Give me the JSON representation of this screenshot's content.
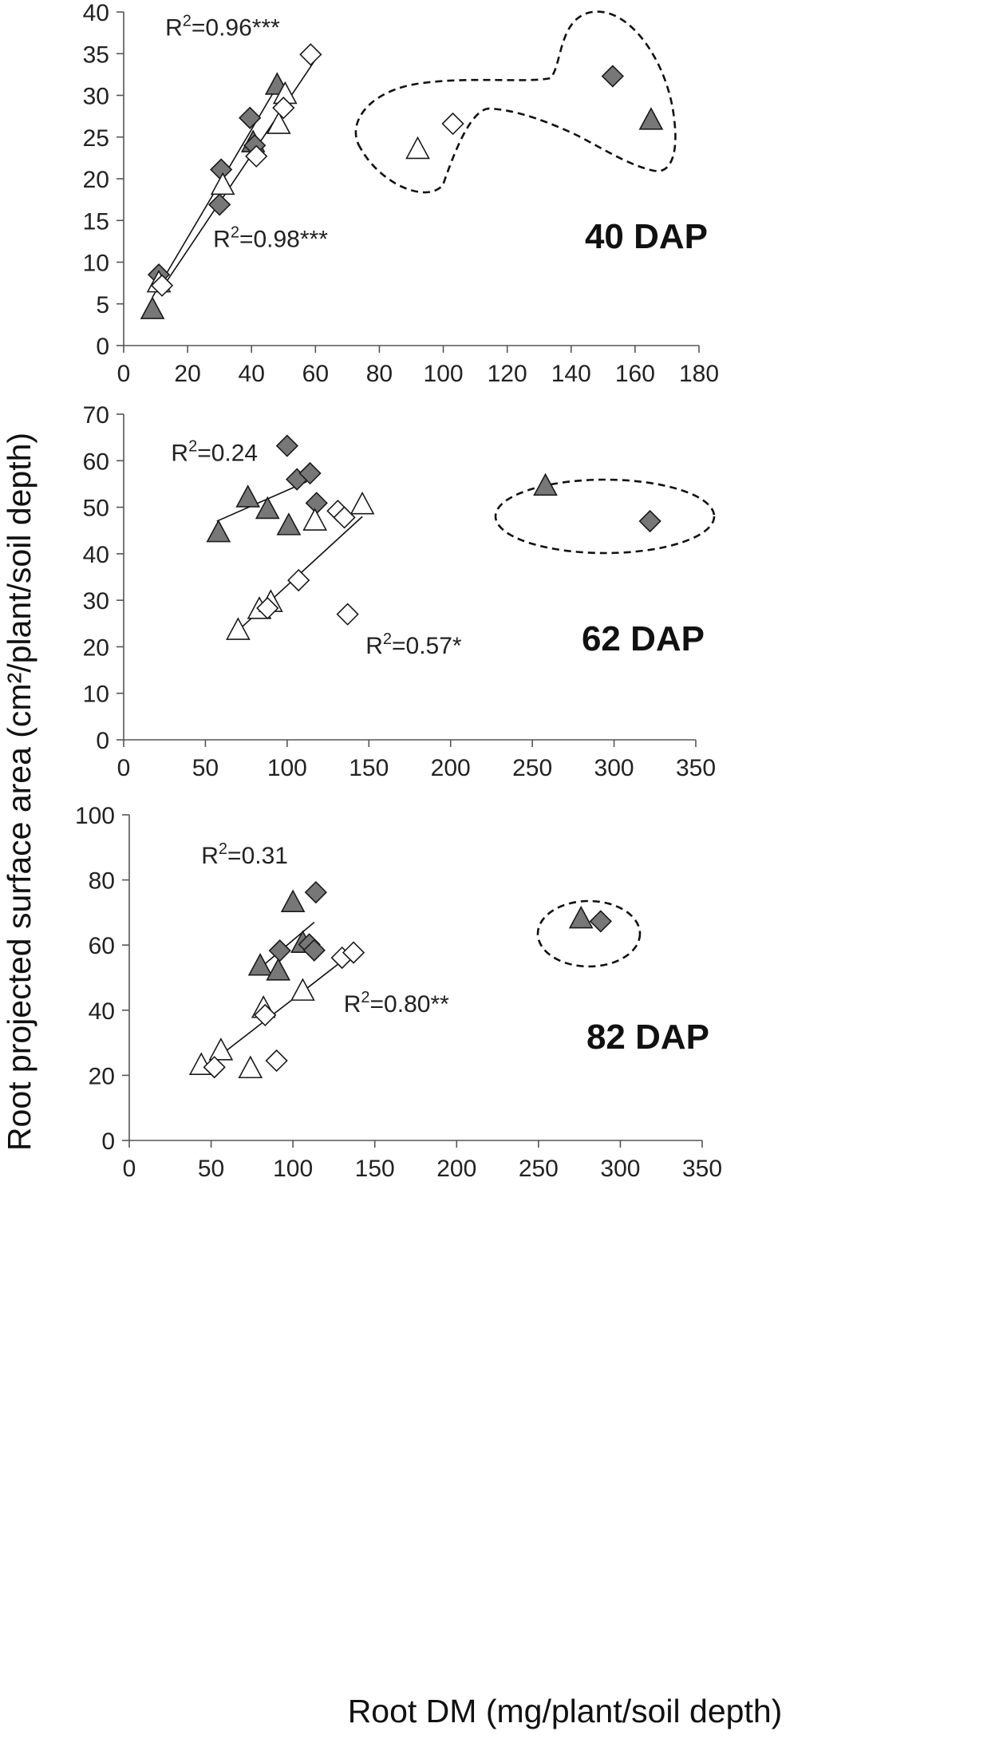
{
  "figure": {
    "ylabel": "Root projected surface area (cm²/plant/soil depth)",
    "xlabel": "Root DM (mg/plant/soil depth)"
  },
  "chart_data": [
    {
      "type": "scatter",
      "panel_label": "40 DAP",
      "xlim": [
        0,
        180
      ],
      "xticks": [
        0,
        20,
        40,
        60,
        80,
        100,
        120,
        140,
        160,
        180
      ],
      "ylim": [
        0,
        40
      ],
      "yticks": [
        0,
        5,
        10,
        15,
        20,
        25,
        30,
        35,
        40
      ],
      "series": [
        {
          "name": "filled-triangle",
          "marker": "triangle",
          "fill": "#777777",
          "points": [
            [
              9,
              4.3
            ],
            [
              48,
              31.2
            ],
            [
              40.5,
              24.3
            ],
            [
              165,
              27
            ]
          ]
        },
        {
          "name": "filled-diamond",
          "marker": "diamond",
          "fill": "#777777",
          "points": [
            [
              11,
              8.5
            ],
            [
              30.5,
              21.1
            ],
            [
              30,
              16.9
            ],
            [
              39.5,
              27.3
            ],
            [
              41,
              24
            ],
            [
              153,
              32.3
            ]
          ]
        },
        {
          "name": "open-triangle",
          "marker": "triangle",
          "fill": "#ffffff",
          "points": [
            [
              11,
              7.5
            ],
            [
              31,
              19.2
            ],
            [
              48.5,
              26.5
            ],
            [
              50.5,
              30.1
            ],
            [
              92,
              23.5
            ]
          ]
        },
        {
          "name": "open-diamond",
          "marker": "diamond",
          "fill": "#ffffff",
          "points": [
            [
              12,
              7.2
            ],
            [
              41.5,
              22.7
            ],
            [
              50,
              28.5
            ],
            [
              58.5,
              34.9
            ],
            [
              103,
              26.6
            ]
          ]
        }
      ],
      "fit_lines": [
        {
          "x": [
            9,
            48
          ],
          "y": [
            5.8,
            31.1
          ]
        },
        {
          "x": [
            11,
            60
          ],
          "y": [
            6.3,
            34.3
          ]
        }
      ],
      "r2_labels": [
        {
          "prefix": "R",
          "sup": "2",
          "text": "=0.96***",
          "x": 13,
          "y": 37.2
        },
        {
          "prefix": "R",
          "sup": "2",
          "text": "=0.98***",
          "x": 28,
          "y": 11.8
        }
      ],
      "outlier_note": "dashed outline around points at high root DM"
    },
    {
      "type": "scatter",
      "panel_label": "62 DAP",
      "xlim": [
        0,
        350
      ],
      "xticks": [
        0,
        50,
        100,
        150,
        200,
        250,
        300,
        350
      ],
      "ylim": [
        0,
        70
      ],
      "yticks": [
        0,
        10,
        20,
        30,
        40,
        50,
        60,
        70
      ],
      "series": [
        {
          "name": "filled-triangle",
          "marker": "triangle",
          "fill": "#777777",
          "points": [
            [
              58,
              44.5
            ],
            [
              76,
              52
            ],
            [
              88,
              49.5
            ],
            [
              101,
              46
            ],
            [
              258,
              54.5
            ]
          ]
        },
        {
          "name": "filled-diamond",
          "marker": "diamond",
          "fill": "#777777",
          "points": [
            [
              100,
              63.2
            ],
            [
              106,
              56
            ],
            [
              114,
              57.3
            ],
            [
              118,
              50.9
            ],
            [
              322,
              47
            ]
          ]
        },
        {
          "name": "open-triangle",
          "marker": "triangle",
          "fill": "#ffffff",
          "points": [
            [
              70,
              23.5
            ],
            [
              83,
              28
            ],
            [
              90,
              29.5
            ],
            [
              117,
              47
            ],
            [
              146,
              50.5
            ]
          ]
        },
        {
          "name": "open-diamond",
          "marker": "diamond",
          "fill": "#ffffff",
          "points": [
            [
              88,
              28.3
            ],
            [
              107,
              34.3
            ],
            [
              131,
              49.2
            ],
            [
              135,
              47.8
            ],
            [
              137,
              27
            ]
          ]
        }
      ],
      "fit_lines": [
        {
          "x": [
            57,
            112
          ],
          "y": [
            47,
            55.5
          ]
        },
        {
          "x": [
            70,
            146
          ],
          "y": [
            23.5,
            48
          ]
        }
      ],
      "r2_labels": [
        {
          "prefix": "R",
          "sup": "2",
          "text": "=0.24",
          "x": 29,
          "y": 60
        },
        {
          "prefix": "R",
          "sup": "2",
          "text": "=0.57*",
          "x": 148,
          "y": 18.5
        }
      ],
      "outlier_note": "dashed ellipse around points at high root DM"
    },
    {
      "type": "scatter",
      "panel_label": "82 DAP",
      "xlim": [
        0,
        350
      ],
      "xticks": [
        0,
        50,
        100,
        150,
        200,
        250,
        300,
        350
      ],
      "ylim": [
        0,
        100
      ],
      "yticks": [
        0,
        20,
        40,
        60,
        80,
        100
      ],
      "series": [
        {
          "name": "filled-triangle",
          "marker": "triangle",
          "fill": "#777777",
          "points": [
            [
              80,
              53.5
            ],
            [
              91,
              52
            ],
            [
              100,
              73
            ],
            [
              106,
              60.5
            ],
            [
              276,
              68
            ]
          ]
        },
        {
          "name": "filled-diamond",
          "marker": "diamond",
          "fill": "#777777",
          "points": [
            [
              92,
              58.3
            ],
            [
              110,
              60.2
            ],
            [
              113,
              58.4
            ],
            [
              114,
              76.2
            ],
            [
              288,
              67.3
            ]
          ]
        },
        {
          "name": "open-triangle",
          "marker": "triangle",
          "fill": "#ffffff",
          "points": [
            [
              44,
              23
            ],
            [
              56,
              27.5
            ],
            [
              74,
              22
            ],
            [
              82,
              40.5
            ],
            [
              106,
              45.8
            ]
          ]
        },
        {
          "name": "open-diamond",
          "marker": "diamond",
          "fill": "#ffffff",
          "points": [
            [
              52,
              22.5
            ],
            [
              83,
              38.5
            ],
            [
              90,
              24.5
            ],
            [
              130,
              56.1
            ],
            [
              137,
              57.7
            ]
          ]
        }
      ],
      "fit_lines": [
        {
          "x": [
            80,
            113
          ],
          "y": [
            53,
            67
          ]
        },
        {
          "x": [
            46,
            137
          ],
          "y": [
            22.4,
            57.8
          ]
        }
      ],
      "r2_labels": [
        {
          "prefix": "R",
          "sup": "2",
          "text": "=0.31",
          "x": 44,
          "y": 85
        },
        {
          "prefix": "R",
          "sup": "2",
          "text": "=0.80**",
          "x": 131,
          "y": 39.5
        }
      ],
      "outlier_note": "dashed ellipse around points at high root DM"
    }
  ]
}
